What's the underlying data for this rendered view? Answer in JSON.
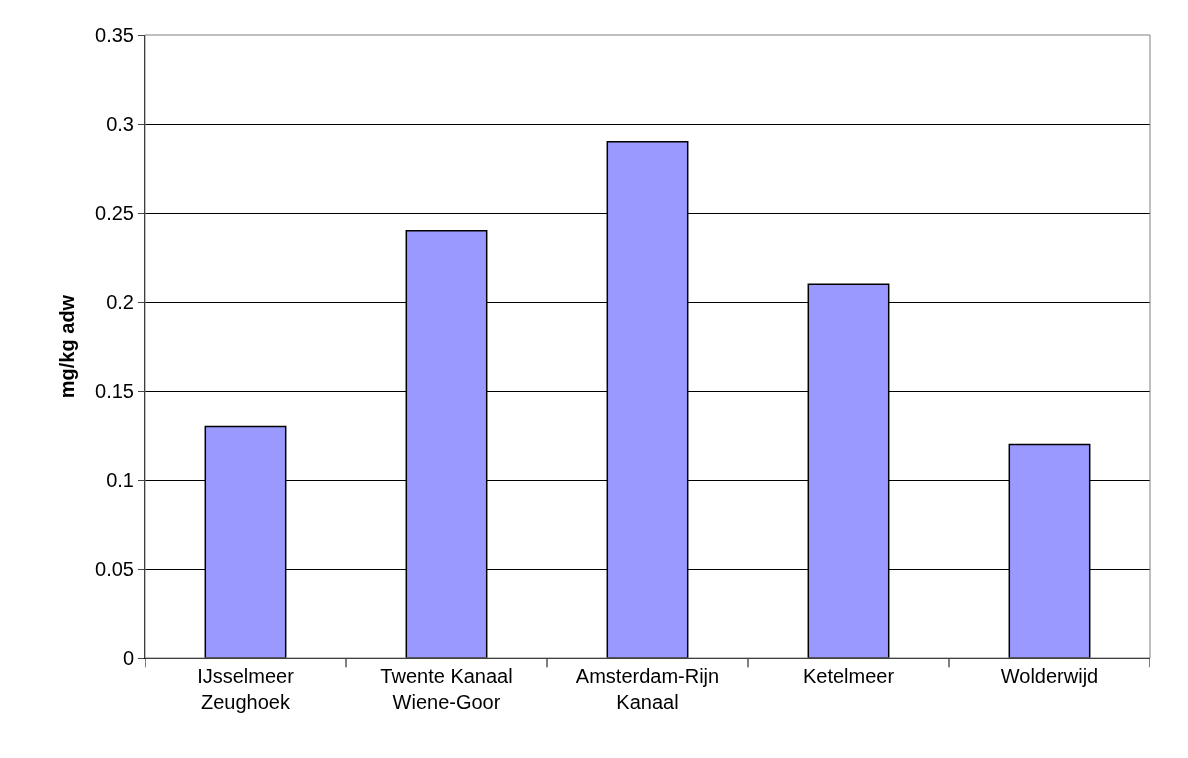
{
  "chart_data": {
    "type": "bar",
    "ylabel": "mg/kg adw",
    "categories": [
      "IJsselmeer\nZeughoek",
      "Twente Kanaal\nWiene-Goor",
      "Amsterdam-Rijn\nKanaal",
      "Ketelmeer",
      "Wolderwijd"
    ],
    "values": [
      0.13,
      0.24,
      0.29,
      0.21,
      0.12
    ],
    "color": "#9999ff",
    "ylim": [
      0,
      0.35
    ],
    "yticks": [
      0,
      0.05,
      0.1,
      0.15,
      0.2,
      0.25,
      0.3,
      0.35
    ],
    "grid": "y",
    "legend": false
  }
}
